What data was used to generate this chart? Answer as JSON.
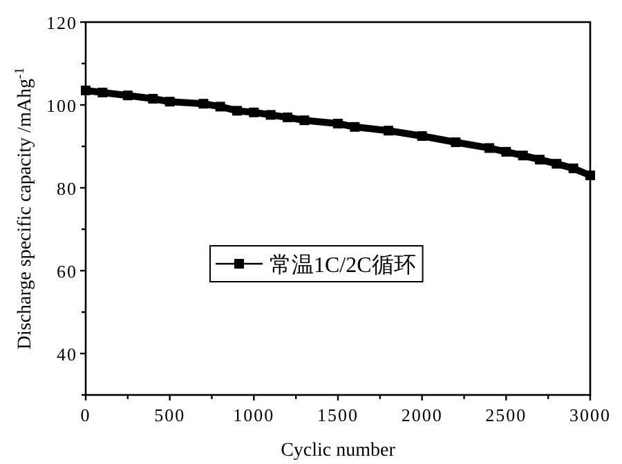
{
  "chart_data": {
    "type": "line",
    "xlabel": "Cyclic number",
    "ylabel": "Discharge specific capacity /mAhg$^{-1}$",
    "x": [
      0,
      100,
      250,
      400,
      500,
      700,
      800,
      900,
      1000,
      1100,
      1200,
      1300,
      1500,
      1600,
      1800,
      2000,
      2200,
      2400,
      2500,
      2600,
      2700,
      2800,
      2900,
      3000
    ],
    "series": [
      {
        "name": "常温1C/2C循环",
        "color": "#000000",
        "values": [
          103.5,
          103,
          102.3,
          101.5,
          100.8,
          100.3,
          99.6,
          98.6,
          98.2,
          97.6,
          97.0,
          96.3,
          95.5,
          94.7,
          93.8,
          92.5,
          91,
          89.6,
          88.7,
          87.8,
          86.8,
          85.8,
          84.7,
          83
        ]
      }
    ],
    "xlim": [
      0,
      3000
    ],
    "ylim": [
      30,
      120
    ],
    "xticks": [
      0,
      {
        "value": 250,
        "label": null
      },
      500,
      {
        "value": 750,
        "label": null
      },
      1000,
      {
        "value": 1250,
        "label": null
      },
      1500,
      {
        "value": 1750,
        "label": null
      },
      2000,
      {
        "value": 2250,
        "label": null
      },
      2500,
      {
        "value": 2750,
        "label": null
      },
      3000
    ],
    "yticks": [
      {
        "value": 30,
        "label": null
      },
      40,
      {
        "value": 50,
        "label": null
      },
      60,
      {
        "value": 70,
        "label": null
      },
      80,
      {
        "value": 90,
        "label": null
      },
      100,
      {
        "value": 110,
        "label": null
      },
      120
    ],
    "marker": "square",
    "line_style": "solid",
    "legend": "left",
    "grid": false
  }
}
